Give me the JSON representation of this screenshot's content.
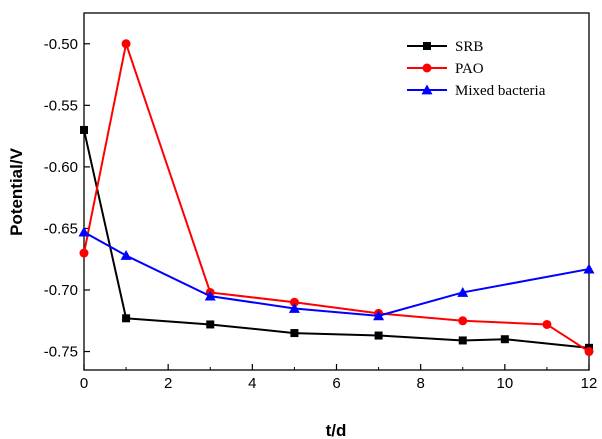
{
  "chart_data": {
    "type": "line",
    "title": "",
    "xlabel": "t/d",
    "ylabel": "Potential/V",
    "xlim": [
      0,
      12
    ],
    "ylim": [
      -0.765,
      -0.475
    ],
    "xticks": [
      0,
      2,
      4,
      6,
      8,
      10,
      12
    ],
    "yticks": [
      -0.75,
      -0.7,
      -0.65,
      -0.6,
      -0.55,
      -0.5
    ],
    "xtick_labels": [
      "0",
      "2",
      "4",
      "6",
      "8",
      "10",
      "12"
    ],
    "ytick_labels": [
      "-0.75",
      "-0.70",
      "-0.65",
      "-0.60",
      "-0.55",
      "-0.50"
    ],
    "grid": false,
    "legend_position": "top-right",
    "series": [
      {
        "name": "SRB",
        "color": "#000000",
        "marker": "square",
        "x": [
          0,
          1,
          3,
          5,
          7,
          9,
          10,
          12
        ],
        "y": [
          -0.57,
          -0.723,
          -0.728,
          -0.735,
          -0.737,
          -0.741,
          -0.74,
          -0.747
        ]
      },
      {
        "name": "PAO",
        "color": "#ff0000",
        "marker": "circle",
        "x": [
          0,
          1,
          3,
          5,
          7,
          9,
          11,
          12
        ],
        "y": [
          -0.67,
          -0.5,
          -0.702,
          -0.71,
          -0.719,
          -0.725,
          -0.728,
          -0.75
        ]
      },
      {
        "name": "Mixed bacteria",
        "color": "#0000ff",
        "marker": "triangle",
        "x": [
          0,
          1,
          3,
          5,
          7,
          9,
          12
        ],
        "y": [
          -0.653,
          -0.672,
          -0.705,
          -0.715,
          -0.721,
          -0.702,
          -0.683
        ]
      }
    ]
  }
}
